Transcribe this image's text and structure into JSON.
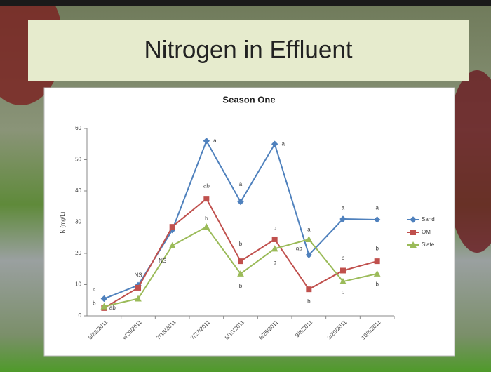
{
  "slide_title": "Nitrogen in Effluent",
  "chart_data": {
    "type": "line",
    "title": "Season One",
    "y_label": "N (mg/L)",
    "categories": [
      "6/22/2011",
      "6/29/2011",
      "7/13/2011",
      "7/27/2011",
      "8/10/2011",
      "8/25/2011",
      "9/8/2011",
      "9/20/2011",
      "10/6/2011"
    ],
    "series": [
      {
        "name": "Sand",
        "color": "#4f81bd",
        "marker": "diamond",
        "values": [
          5.5,
          9.8,
          27.5,
          56,
          36.5,
          55,
          19.5,
          31,
          30.8
        ]
      },
      {
        "name": "OM",
        "color": "#c0504d",
        "marker": "square",
        "values": [
          2.5,
          9,
          28.5,
          37.5,
          17.5,
          24.5,
          8.5,
          14.5,
          17.5
        ]
      },
      {
        "name": "Slate",
        "color": "#9bbb59",
        "marker": "triangle",
        "values": [
          3,
          5.5,
          22.5,
          28.5,
          13.5,
          21.5,
          24.5,
          11,
          13.5
        ]
      }
    ],
    "ylim": [
      0,
      60
    ],
    "yticks": [
      0,
      10,
      20,
      30,
      40,
      50,
      60
    ],
    "grid": false,
    "legend": "right",
    "annotations": [
      {
        "text": "a",
        "x": "6/22/2011",
        "y": 8.5,
        "side": "left"
      },
      {
        "text": "b",
        "x": "6/22/2011",
        "y": 4,
        "side": "left"
      },
      {
        "text": "ab",
        "x": "6/22/2011",
        "y": 2.5,
        "side": "right"
      },
      {
        "text": "NS",
        "x": "6/29/2011",
        "y": 13,
        "side": "center"
      },
      {
        "text": "NS",
        "x": "7/13/2011",
        "y": 17.5,
        "side": "left"
      },
      {
        "text": "a",
        "x": "7/27/2011",
        "y": 56,
        "side": "right"
      },
      {
        "text": "ab",
        "x": "7/27/2011",
        "y": 41.5,
        "side": "center"
      },
      {
        "text": "b",
        "x": "7/27/2011",
        "y": 31,
        "side": "center"
      },
      {
        "text": "a",
        "x": "8/10/2011",
        "y": 42,
        "side": "center"
      },
      {
        "text": "b",
        "x": "8/10/2011",
        "y": 23,
        "side": "center"
      },
      {
        "text": "b",
        "x": "8/10/2011",
        "y": 9.5,
        "side": "center"
      },
      {
        "text": "a",
        "x": "8/25/2011",
        "y": 55,
        "side": "right"
      },
      {
        "text": "b",
        "x": "8/25/2011",
        "y": 28,
        "side": "center"
      },
      {
        "text": "b",
        "x": "8/25/2011",
        "y": 17,
        "side": "center"
      },
      {
        "text": "a",
        "x": "9/8/2011",
        "y": 27.5,
        "side": "center"
      },
      {
        "text": "ab",
        "x": "9/8/2011",
        "y": 21.5,
        "side": "left"
      },
      {
        "text": "b",
        "x": "9/8/2011",
        "y": 4.5,
        "side": "center"
      },
      {
        "text": "a",
        "x": "9/20/2011",
        "y": 34.5,
        "side": "center"
      },
      {
        "text": "b",
        "x": "9/20/2011",
        "y": 18.5,
        "side": "center"
      },
      {
        "text": "b",
        "x": "9/20/2011",
        "y": 7.5,
        "side": "center"
      },
      {
        "text": "a",
        "x": "10/6/2011",
        "y": 34.5,
        "side": "center"
      },
      {
        "text": "b",
        "x": "10/6/2011",
        "y": 21.5,
        "side": "center"
      },
      {
        "text": "b",
        "x": "10/6/2011",
        "y": 10,
        "side": "center"
      }
    ]
  }
}
